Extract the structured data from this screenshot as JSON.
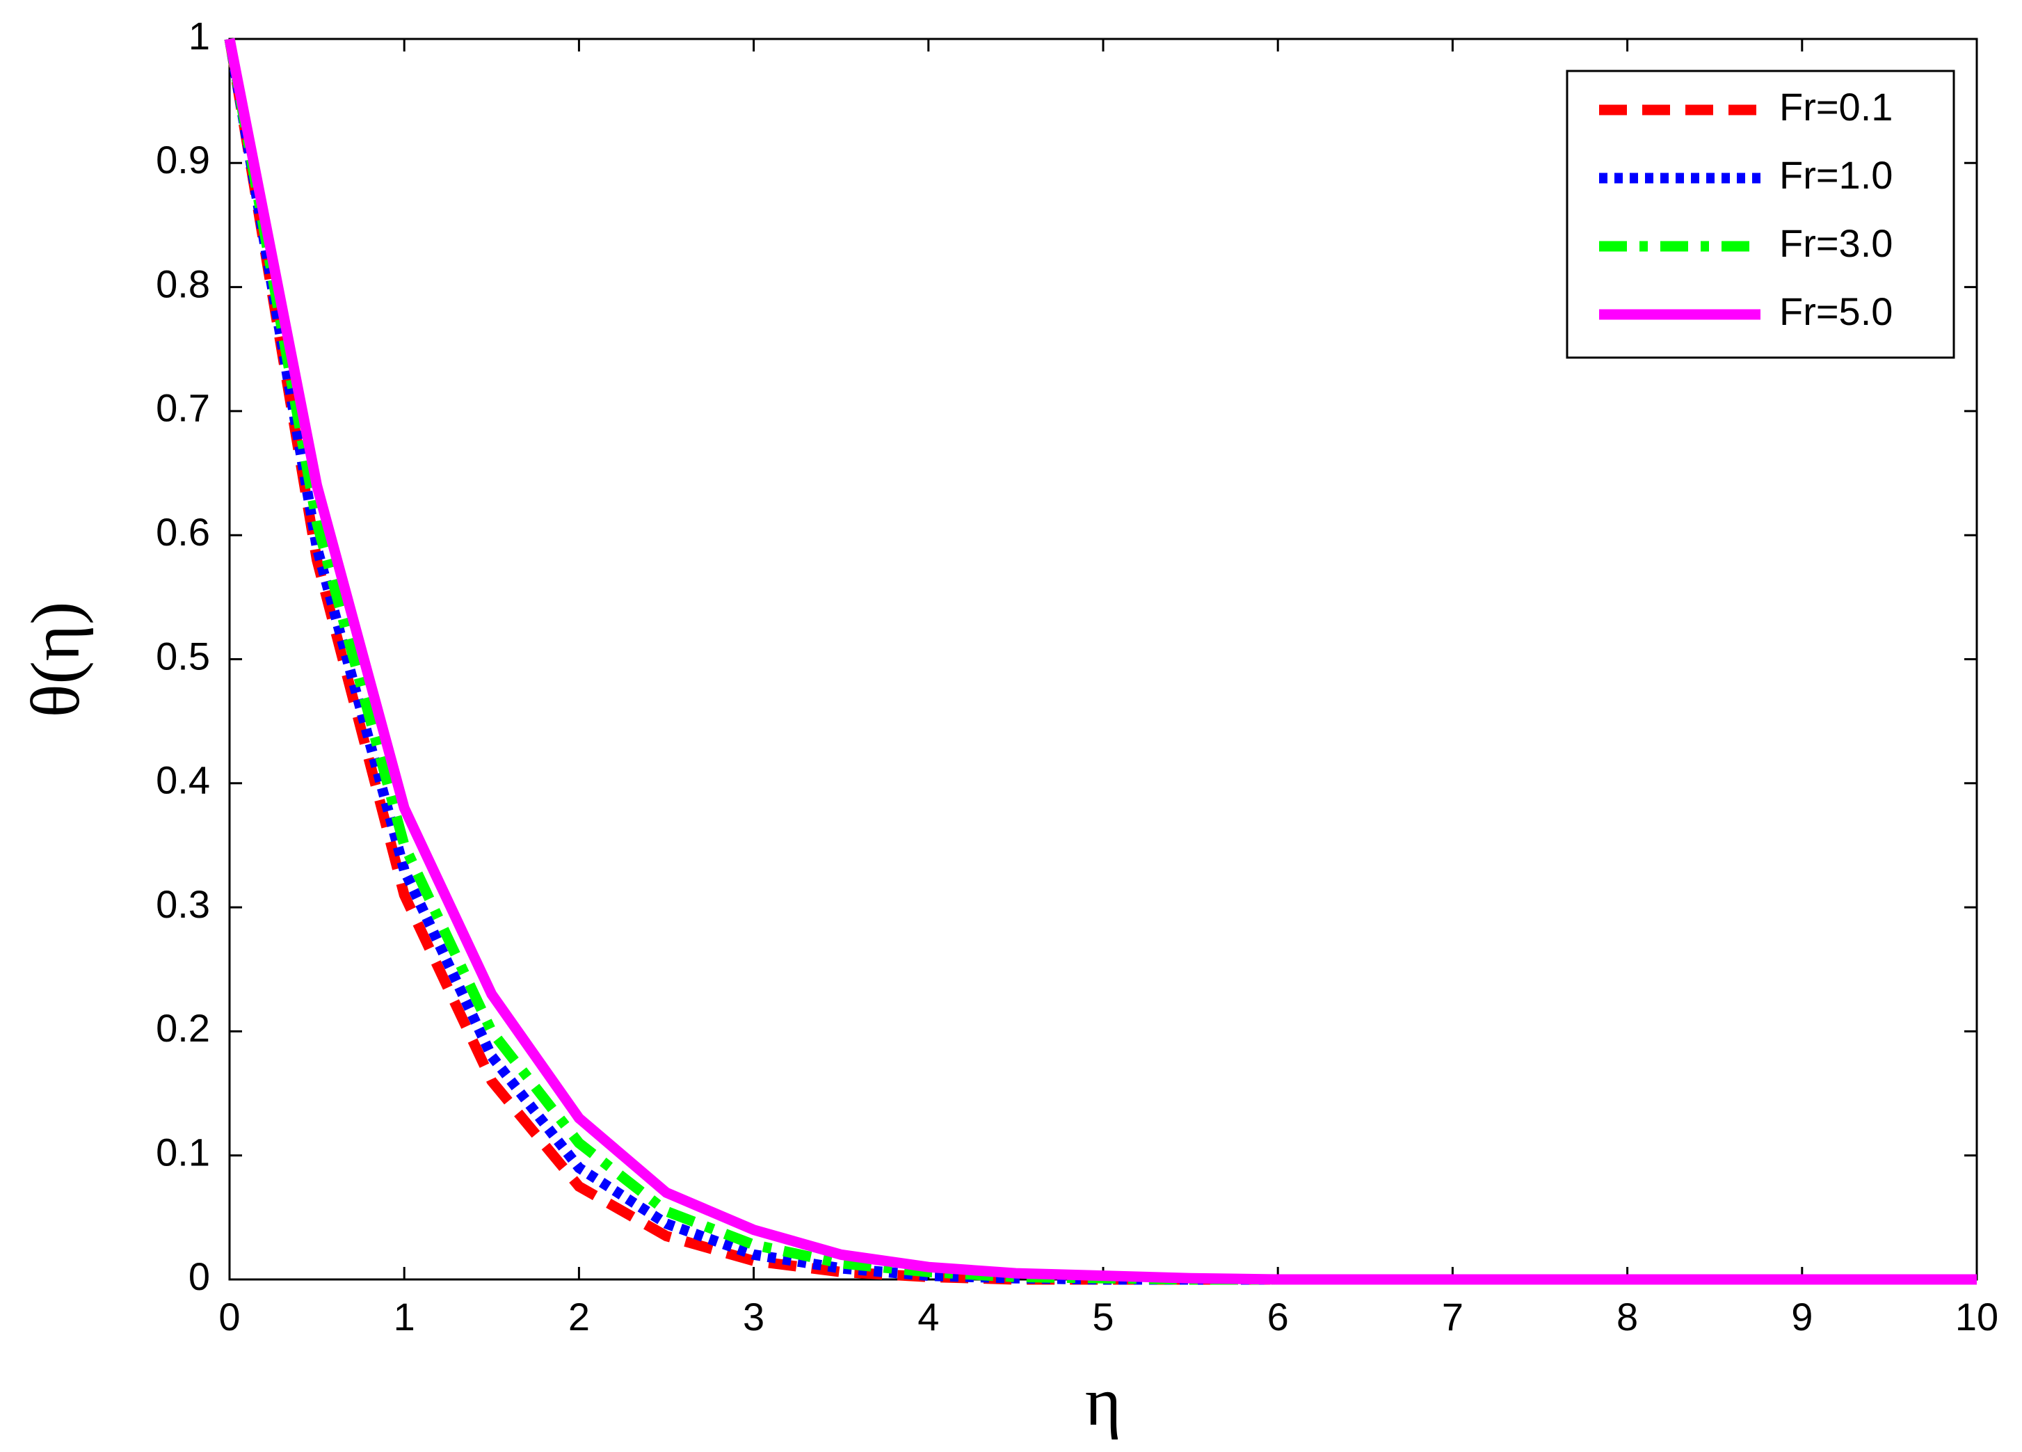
{
  "chart_data": {
    "type": "line",
    "x_label": "η",
    "y_label": "θ(η)",
    "x": [
      0,
      0.5,
      1,
      1.5,
      2,
      2.5,
      3,
      3.5,
      4,
      4.5,
      5,
      5.5,
      6,
      6.5,
      7,
      7.5,
      8,
      8.5,
      9,
      9.5,
      10
    ],
    "series": [
      {
        "name": "Fr=0.1",
        "color": "#ff0000",
        "dash": "dashed",
        "values": [
          1,
          0.58,
          0.31,
          0.16,
          0.075,
          0.035,
          0.015,
          0.006,
          0.002,
          0,
          0,
          0,
          0,
          0,
          0,
          0,
          0,
          0,
          0,
          0,
          0
        ]
      },
      {
        "name": "Fr=1.0",
        "color": "#0000ff",
        "dash": "dotted",
        "values": [
          1,
          0.59,
          0.33,
          0.18,
          0.09,
          0.045,
          0.02,
          0.009,
          0.003,
          0.001,
          0,
          0,
          0,
          0,
          0,
          0,
          0,
          0,
          0,
          0,
          0
        ]
      },
      {
        "name": "Fr=3.0",
        "color": "#00ff00",
        "dash": "dashdot",
        "values": [
          1,
          0.61,
          0.35,
          0.2,
          0.11,
          0.055,
          0.028,
          0.013,
          0.006,
          0.002,
          0.001,
          0,
          0,
          0,
          0,
          0,
          0,
          0,
          0,
          0,
          0
        ]
      },
      {
        "name": "Fr=5.0",
        "color": "#ff00ff",
        "dash": "solid",
        "values": [
          1,
          0.64,
          0.38,
          0.23,
          0.13,
          0.07,
          0.04,
          0.02,
          0.01,
          0.005,
          0.003,
          0.001,
          0,
          0,
          0,
          0,
          0,
          0,
          0,
          0,
          0
        ]
      }
    ],
    "xlim": [
      0,
      10
    ],
    "xticks": [
      0,
      1,
      2,
      3,
      4,
      5,
      6,
      7,
      8,
      9,
      10
    ],
    "ylim": [
      0,
      1
    ],
    "yticks": [
      0,
      0.1,
      0.2,
      0.3,
      0.4,
      0.5,
      0.6,
      0.7,
      0.8,
      0.9,
      1
    ],
    "legend": "upper-right",
    "grid": false
  }
}
